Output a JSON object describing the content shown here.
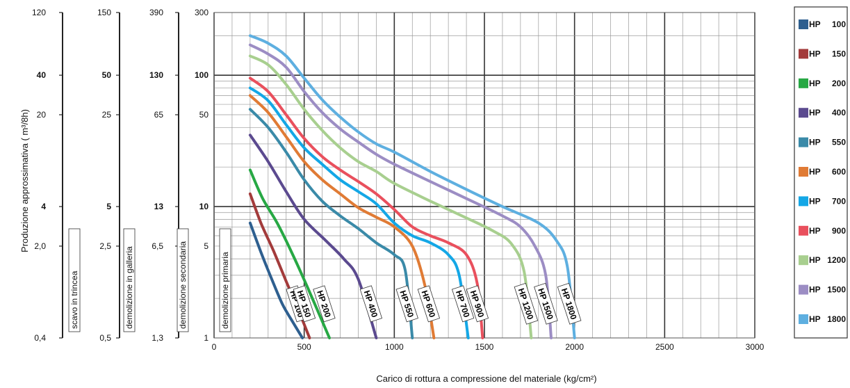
{
  "chart_data": {
    "type": "line",
    "title": "",
    "xlabel": "Carico di rottura a compressione del materiale (kg/cm²)",
    "ylabel": "Produzione approssimativa ( m³/8h)",
    "x_ticks": [
      "0",
      "500",
      "1000",
      "1500",
      "2000",
      "2500",
      "3000"
    ],
    "xlim": [
      0,
      3000
    ],
    "ylim": [
      1,
      300
    ],
    "y_scale": "log",
    "grid": true,
    "legend_position": "right",
    "y_scales": [
      {
        "name": "",
        "ticks": [
          {
            "value": 300,
            "label": "300",
            "bold": false
          },
          {
            "value": 100,
            "label": "100",
            "bold": true
          },
          {
            "value": 50,
            "label": "50",
            "bold": false
          },
          {
            "value": 10,
            "label": "10",
            "bold": true
          },
          {
            "value": 5,
            "label": "5",
            "bold": false
          },
          {
            "value": 1,
            "label": "1",
            "bold": false
          }
        ]
      },
      {
        "name": "demolizione primaria",
        "ticks": []
      },
      {
        "name": "demolizione secondaria",
        "ticks": [
          {
            "value": 300,
            "label": "390",
            "bold": false
          },
          {
            "value": 100,
            "label": "130",
            "bold": true
          },
          {
            "value": 50,
            "label": "65",
            "bold": false
          },
          {
            "value": 10,
            "label": "13",
            "bold": true
          },
          {
            "value": 5,
            "label": "6,5",
            "bold": false
          },
          {
            "value": 1,
            "label": "1,3",
            "bold": false
          }
        ]
      },
      {
        "name": "demolizione in galleria",
        "ticks": [
          {
            "value": 300,
            "label": "150",
            "bold": false
          },
          {
            "value": 100,
            "label": "50",
            "bold": true
          },
          {
            "value": 50,
            "label": "25",
            "bold": false
          },
          {
            "value": 10,
            "label": "5",
            "bold": true
          },
          {
            "value": 5,
            "label": "2,5",
            "bold": false
          },
          {
            "value": 1,
            "label": "0,5",
            "bold": false
          }
        ]
      },
      {
        "name": "scavo in trincea",
        "ticks": [
          {
            "value": 300,
            "label": "120",
            "bold": false
          },
          {
            "value": 100,
            "label": "40",
            "bold": true
          },
          {
            "value": 50,
            "label": "20",
            "bold": false
          },
          {
            "value": 10,
            "label": "4",
            "bold": true
          },
          {
            "value": 5,
            "label": "2,0",
            "bold": false
          },
          {
            "value": 1,
            "label": "0,4",
            "bold": false
          }
        ]
      }
    ],
    "series": [
      {
        "name": "HP 100",
        "label": "HP 100",
        "color": "#2e5f8f",
        "x": [
          200,
          260,
          320,
          380,
          440,
          490
        ],
        "y": [
          7.5,
          4.5,
          2.8,
          1.8,
          1.3,
          1
        ]
      },
      {
        "name": "HP 150",
        "label": "HP 150",
        "color": "#a33b3b",
        "x": [
          200,
          260,
          330,
          400,
          470,
          530
        ],
        "y": [
          12.5,
          7.5,
          4.6,
          2.7,
          1.6,
          1
        ]
      },
      {
        "name": "HP 200",
        "label": "HP 200",
        "color": "#27a844",
        "x": [
          200,
          270,
          350,
          430,
          520,
          640
        ],
        "y": [
          19,
          11.5,
          7.5,
          4.5,
          2.4,
          1
        ]
      },
      {
        "name": "HP 400",
        "label": "HP 400",
        "color": "#5b4a8f",
        "x": [
          200,
          300,
          400,
          500,
          620,
          720,
          800,
          900
        ],
        "y": [
          35,
          22,
          13,
          8,
          5.5,
          4,
          2.8,
          1
        ]
      },
      {
        "name": "HP 550",
        "label": "HP 550",
        "color": "#3a8aa8",
        "x": [
          200,
          300,
          400,
          500,
          600,
          700,
          800,
          900,
          1000,
          1060,
          1100
        ],
        "y": [
          55,
          40,
          26,
          16,
          11,
          8.5,
          6.8,
          5.3,
          4.3,
          3.3,
          1
        ]
      },
      {
        "name": "HP 600",
        "label": "HP 600",
        "color": "#e07b35",
        "x": [
          200,
          300,
          400,
          500,
          600,
          700,
          800,
          900,
          1000,
          1100,
          1170,
          1220
        ],
        "y": [
          70,
          52,
          34,
          22,
          16,
          12.5,
          9.8,
          8.3,
          7,
          5,
          2.5,
          1
        ]
      },
      {
        "name": "HP 700",
        "label": "HP 700",
        "color": "#14a7e6",
        "x": [
          200,
          300,
          400,
          500,
          600,
          700,
          800,
          900,
          1000,
          1100,
          1200,
          1300,
          1360,
          1410
        ],
        "y": [
          80,
          64,
          42,
          28,
          21,
          16,
          13,
          10.5,
          7.5,
          6,
          5.3,
          4.3,
          3,
          1
        ]
      },
      {
        "name": "HP 900",
        "label": "HP 900",
        "color": "#e9505d",
        "x": [
          200,
          300,
          400,
          500,
          600,
          700,
          800,
          900,
          1000,
          1100,
          1200,
          1300,
          1400,
          1460,
          1490
        ],
        "y": [
          95,
          75,
          50,
          33,
          24,
          19,
          15.5,
          12.5,
          9.5,
          7,
          6,
          5.3,
          4.3,
          2.6,
          1
        ]
      },
      {
        "name": "HP 1200",
        "label": "HP 1200",
        "color": "#a8cf8f",
        "x": [
          200,
          300,
          400,
          500,
          600,
          700,
          800,
          900,
          1000,
          1200,
          1400,
          1550,
          1650,
          1720,
          1760
        ],
        "y": [
          140,
          120,
          85,
          55,
          38,
          28,
          22,
          18.5,
          15,
          11,
          8.2,
          6.5,
          5.2,
          3.2,
          1
        ]
      },
      {
        "name": "HP 1500",
        "label": "HP 1500",
        "color": "#9c8dc4",
        "x": [
          200,
          300,
          400,
          500,
          600,
          700,
          800,
          900,
          1000,
          1200,
          1400,
          1600,
          1700,
          1780,
          1840,
          1870
        ],
        "y": [
          170,
          145,
          115,
          75,
          52,
          39,
          31,
          25,
          21,
          15.5,
          11.5,
          8.5,
          7,
          5,
          3,
          1
        ]
      },
      {
        "name": "HP 1800",
        "label": "HP 1800",
        "color": "#5eafe0",
        "x": [
          200,
          300,
          400,
          500,
          600,
          700,
          800,
          900,
          1000,
          1200,
          1400,
          1600,
          1800,
          1900,
          1960,
          2000
        ],
        "y": [
          200,
          175,
          140,
          95,
          65,
          48,
          37,
          30,
          26,
          18.5,
          13.5,
          10,
          7.5,
          5.5,
          3.5,
          1
        ]
      }
    ]
  },
  "legend": {
    "items": [
      {
        "hp": "HP",
        "num": "100",
        "color": "#2e5f8f"
      },
      {
        "hp": "HP",
        "num": "150",
        "color": "#a33b3b"
      },
      {
        "hp": "HP",
        "num": "200",
        "color": "#27a844"
      },
      {
        "hp": "HP",
        "num": "400",
        "color": "#5b4a8f"
      },
      {
        "hp": "HP",
        "num": "550",
        "color": "#3a8aa8"
      },
      {
        "hp": "HP",
        "num": "600",
        "color": "#e07b35"
      },
      {
        "hp": "HP",
        "num": "700",
        "color": "#14a7e6"
      },
      {
        "hp": "HP",
        "num": "900",
        "color": "#e9505d"
      },
      {
        "hp": "HP",
        "num": "1200",
        "color": "#a8cf8f"
      },
      {
        "hp": "HP",
        "num": "1500",
        "color": "#9c8dc4"
      },
      {
        "hp": "HP",
        "num": "1800",
        "color": "#5eafe0"
      }
    ]
  }
}
